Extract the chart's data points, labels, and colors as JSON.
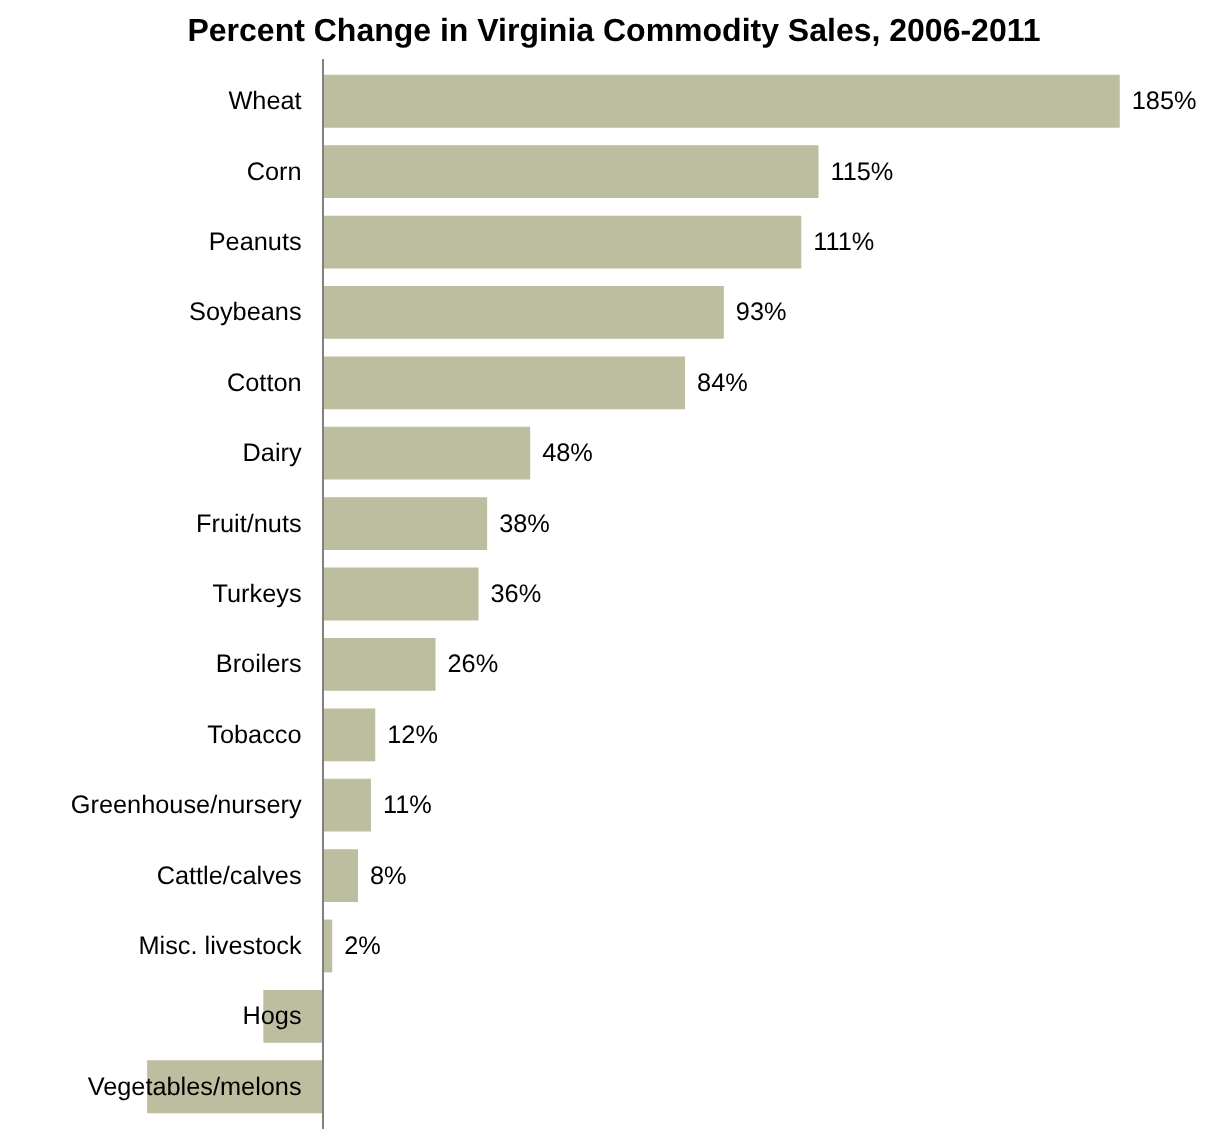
{
  "chart_data": {
    "type": "bar",
    "orientation": "horizontal",
    "title": "Percent Change in Virginia Commodity Sales, 2006-2011",
    "categories": [
      "Wheat",
      "Corn",
      "Peanuts",
      "Soybeans",
      "Cotton",
      "Dairy",
      "Fruit/nuts",
      "Turkeys",
      "Broilers",
      "Tobacco",
      "Greenhouse/nursery",
      "Cattle/calves",
      "Misc. livestock",
      "Hogs",
      "Vegetables/melons"
    ],
    "values": [
      185,
      115,
      111,
      93,
      84,
      48,
      38,
      36,
      26,
      12,
      11,
      8,
      2,
      -14,
      -41
    ],
    "value_labels": [
      "185%",
      "115%",
      "111%",
      "93%",
      "84%",
      "48%",
      "38%",
      "36%",
      "26%",
      "12%",
      "11%",
      "8%",
      "2%",
      null,
      null
    ],
    "color": "#bdbd9f",
    "grid": false
  }
}
